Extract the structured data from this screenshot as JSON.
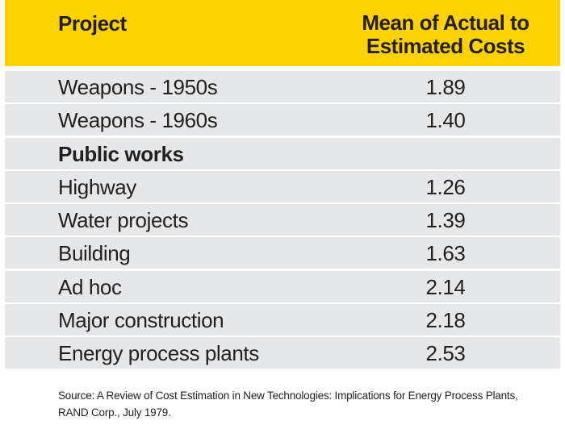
{
  "header": {
    "project_label": "Project",
    "mean_label_line1": "Mean of Actual to",
    "mean_label_line2": "Estimated Costs"
  },
  "rows": [
    {
      "name": "Weapons - 1950s",
      "value": "1.89"
    },
    {
      "name": "Weapons - 1960s",
      "value": "1.40"
    },
    {
      "name": "Public works",
      "value": ""
    },
    {
      "name": "Highway",
      "value": "1.26"
    },
    {
      "name": "Water projects",
      "value": "1.39"
    },
    {
      "name": "Building",
      "value": "1.63"
    },
    {
      "name": "Ad hoc",
      "value": "2.14"
    },
    {
      "name": "Major construction",
      "value": "2.18"
    },
    {
      "name": "Energy process plants",
      "value": "2.53"
    }
  ],
  "source": {
    "line1": "Source: A Review of Cost Estimation in New Technologies: Implications for Energy Process Plants,",
    "line2": "RAND Corp., July 1979."
  }
}
